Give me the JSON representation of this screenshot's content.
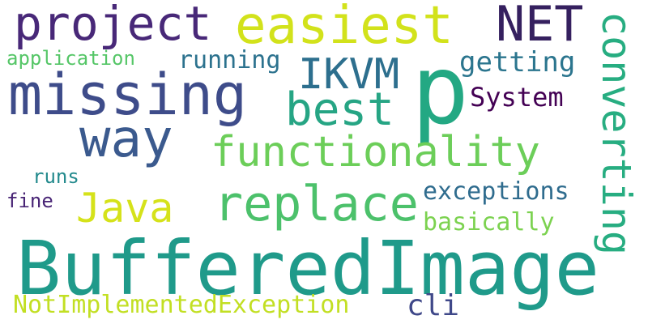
{
  "word_cloud": {
    "background": "#ffffff",
    "palette": "viridis",
    "words": {
      "p": "p",
      "buffered_image": "BufferedImage",
      "missing": "missing",
      "easiest": "easiest",
      "project": "project",
      "net": "NET",
      "best": "best",
      "way": "way",
      "ikvm": "IKVM",
      "functionality": "functionality",
      "replace": "replace",
      "java": "Java",
      "converting": "converting",
      "getting": "getting",
      "system": "System",
      "running": "running",
      "application": "application",
      "exceptions": "exceptions",
      "basically": "basically",
      "runs": "runs",
      "fine": "fine",
      "not_implemented_exception": "NotImplementedException",
      "cli": "cli"
    }
  }
}
